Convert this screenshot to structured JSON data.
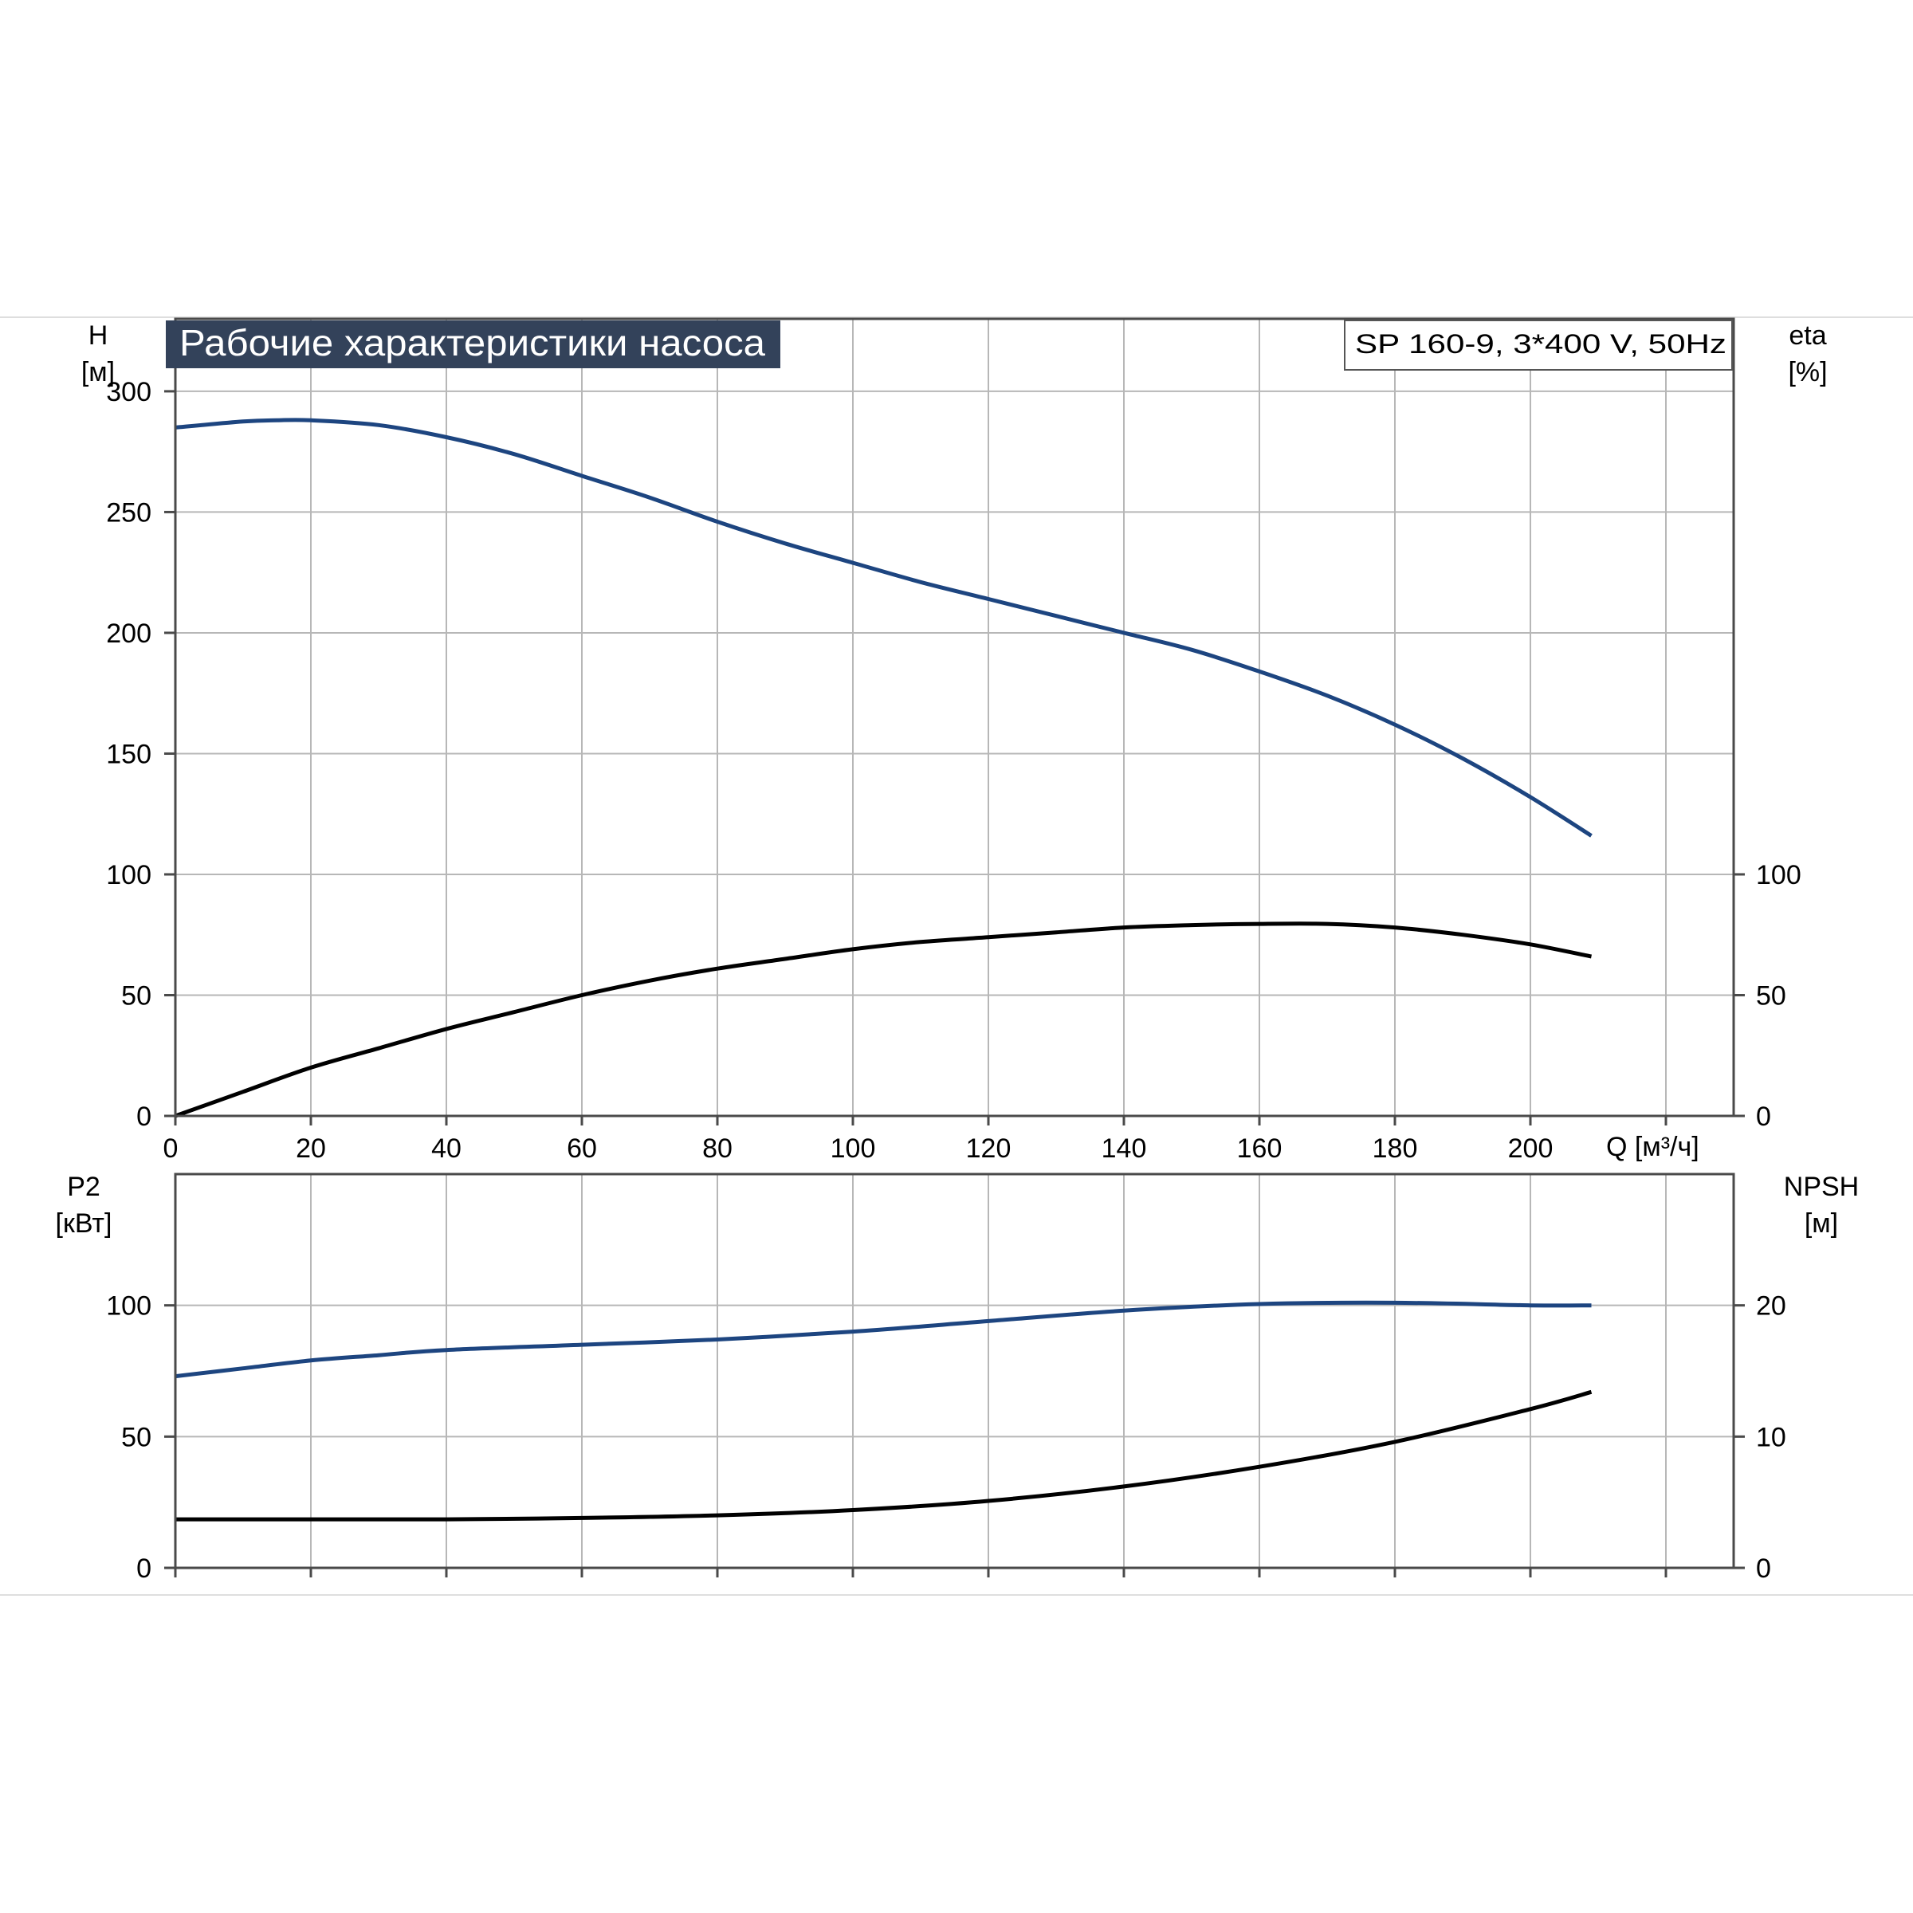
{
  "title_badge": "Рабочие характеристики насоса",
  "model_label": "SP 160-9, 3*400 V, 50Hz",
  "colors": {
    "blue": "#1d4580",
    "black": "#000000",
    "grid": "#b7b7b7",
    "badge_bg": "#33425a",
    "badge_text": "#ffffff"
  },
  "x_axis": {
    "unit_label": "Q [м³/ч]",
    "min": 0,
    "max": 230,
    "ticks": [
      0,
      20,
      40,
      60,
      80,
      100,
      120,
      140,
      160,
      180,
      200
    ],
    "gridlines": [
      0,
      20,
      40,
      60,
      80,
      100,
      120,
      140,
      160,
      180,
      200,
      220
    ]
  },
  "chart_data": [
    {
      "type": "line",
      "panel": "top",
      "grid": true,
      "left_axis": {
        "label": "H",
        "unit": "[м]",
        "min": 0,
        "max": 330,
        "ticks": [
          0,
          50,
          100,
          150,
          200,
          250,
          300
        ]
      },
      "right_axis": {
        "label": "eta",
        "unit": "[%]",
        "min": 0,
        "max": 330,
        "ticks": [
          0,
          50,
          100
        ]
      },
      "series": [
        {
          "color": "blue",
          "axis": "left",
          "x": [
            0,
            10,
            15,
            20,
            30,
            40,
            50,
            60,
            70,
            80,
            90,
            100,
            110,
            120,
            130,
            140,
            150,
            160,
            170,
            180,
            190,
            200,
            209
          ],
          "y": [
            285,
            287.5,
            288,
            288,
            286,
            281,
            274,
            265,
            256,
            246,
            237,
            229,
            221,
            214,
            207,
            200,
            193,
            184,
            174,
            162,
            148,
            132,
            116
          ]
        },
        {
          "color": "black",
          "axis": "right",
          "x": [
            0,
            10,
            20,
            30,
            40,
            50,
            60,
            70,
            80,
            90,
            100,
            110,
            120,
            130,
            140,
            150,
            160,
            170,
            180,
            190,
            200,
            209
          ],
          "y": [
            0,
            10,
            20,
            28,
            36,
            43,
            50,
            56,
            61,
            65,
            69,
            72,
            74,
            76,
            78,
            79,
            79.5,
            79.5,
            78,
            75,
            71,
            66
          ]
        }
      ]
    },
    {
      "type": "line",
      "panel": "bottom",
      "grid": true,
      "left_axis": {
        "label": "P2",
        "unit": "[кВт]",
        "min": 0,
        "max": 150,
        "ticks": [
          0,
          50,
          100
        ]
      },
      "right_axis": {
        "label": "NPSH",
        "unit": "[м]",
        "min": 0,
        "max": 30,
        "ticks": [
          0,
          10,
          20
        ]
      },
      "series": [
        {
          "color": "blue",
          "axis": "left",
          "x": [
            0,
            10,
            20,
            30,
            40,
            60,
            80,
            100,
            120,
            140,
            160,
            180,
            200,
            209
          ],
          "y": [
            73,
            76,
            79,
            81,
            83,
            85,
            87,
            90,
            94,
            98,
            100.5,
            101,
            100,
            100
          ]
        },
        {
          "color": "black",
          "axis": "right",
          "x": [
            0,
            15,
            15,
            40,
            60,
            80,
            100,
            120,
            140,
            160,
            180,
            200,
            209
          ],
          "y": [
            3.7,
            3.7,
            3.7,
            3.7,
            3.8,
            4.0,
            4.4,
            5.1,
            6.2,
            7.7,
            9.6,
            12.1,
            13.4
          ]
        }
      ]
    }
  ]
}
